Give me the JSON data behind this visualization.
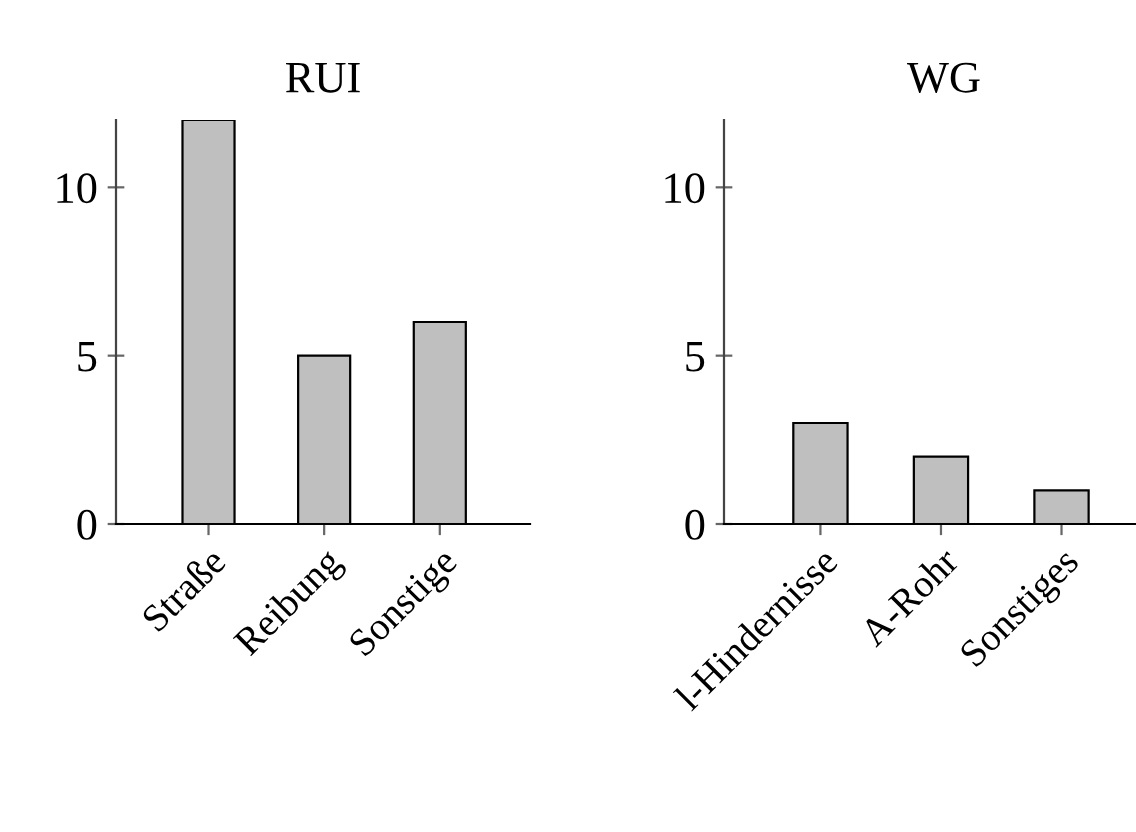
{
  "chart_data": [
    {
      "type": "bar",
      "title": "RUI",
      "categories": [
        "Straße",
        "Reibung",
        "Sonstige"
      ],
      "values": [
        12,
        5,
        6
      ],
      "color": "#bfbfbf",
      "ylim": [
        0,
        12
      ],
      "yticks": [
        0,
        5,
        10
      ],
      "grid": false
    },
    {
      "type": "bar",
      "title": "WG",
      "categories": [
        "l-Hindernisse",
        "A-Rohr",
        "Sonstiges"
      ],
      "values": [
        3,
        2,
        1
      ],
      "color": "#bfbfbf",
      "ylim": [
        0,
        12
      ],
      "yticks": [
        0,
        5,
        10
      ],
      "grid": false
    }
  ]
}
